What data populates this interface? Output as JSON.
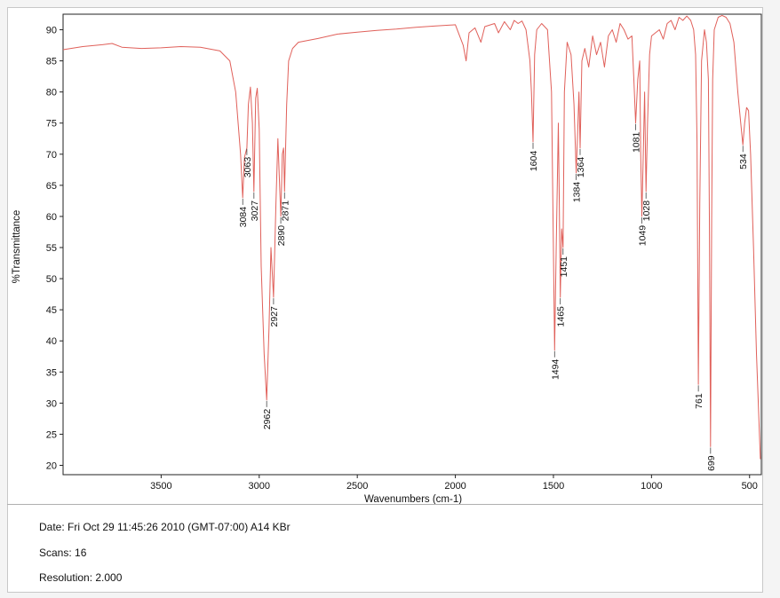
{
  "chart_data": {
    "type": "line",
    "xlabel": "Wavenumbers (cm-1)",
    "ylabel": "%Transmittance",
    "xlim": [
      4000,
      440
    ],
    "ylim": [
      18.5,
      92.5
    ],
    "x_reversed": true,
    "xticks": [
      3500,
      3000,
      2500,
      2000,
      1500,
      1000,
      500
    ],
    "yticks": [
      20,
      25,
      30,
      35,
      40,
      45,
      50,
      55,
      60,
      65,
      70,
      75,
      80,
      85,
      90
    ],
    "grid": false,
    "line_color": "#e0605a",
    "series": [
      {
        "x": [
          4000,
          3900,
          3800,
          3750,
          3700,
          3600,
          3500,
          3400,
          3300,
          3200,
          3150,
          3120,
          3105,
          3095,
          3084,
          3075,
          3063,
          3055,
          3045,
          3035,
          3027,
          3018,
          3010,
          3000,
          2990,
          2975,
          2962,
          2950,
          2940,
          2927,
          2915,
          2905,
          2895,
          2890,
          2882,
          2876,
          2871,
          2860,
          2850,
          2830,
          2800,
          2700,
          2600,
          2500,
          2400,
          2300,
          2200,
          2100,
          2000,
          1960,
          1945,
          1930,
          1900,
          1870,
          1850,
          1800,
          1780,
          1750,
          1720,
          1700,
          1680,
          1660,
          1640,
          1620,
          1612,
          1604,
          1596,
          1585,
          1560,
          1530,
          1510,
          1502,
          1494,
          1486,
          1475,
          1470,
          1465,
          1458,
          1451,
          1444,
          1430,
          1410,
          1395,
          1384,
          1375,
          1370,
          1364,
          1355,
          1340,
          1320,
          1300,
          1280,
          1260,
          1240,
          1220,
          1200,
          1180,
          1160,
          1140,
          1120,
          1100,
          1090,
          1081,
          1070,
          1060,
          1055,
          1049,
          1042,
          1035,
          1028,
          1020,
          1010,
          1000,
          980,
          960,
          940,
          920,
          900,
          880,
          860,
          840,
          820,
          800,
          785,
          775,
          768,
          761,
          754,
          745,
          730,
          720,
          710,
          705,
          699,
          693,
          688,
          680,
          660,
          640,
          620,
          600,
          580,
          560,
          545,
          534,
          525,
          515,
          505,
          495,
          480,
          465,
          445
        ],
        "y": [
          86.8,
          87.3,
          87.6,
          87.8,
          87.2,
          87.0,
          87.1,
          87.3,
          87.2,
          86.6,
          85.0,
          80.0,
          74.0,
          70.0,
          63.0,
          69.5,
          71.0,
          78.0,
          80.8,
          75.0,
          64.0,
          79.0,
          80.6,
          74.0,
          52.0,
          38.0,
          30.5,
          42.0,
          55.0,
          47.0,
          62.0,
          72.5,
          64.0,
          60.0,
          70.0,
          71.0,
          64.0,
          78.0,
          85.0,
          87.0,
          88.0,
          88.6,
          89.3,
          89.6,
          89.9,
          90.1,
          90.4,
          90.6,
          90.8,
          87.5,
          85.0,
          89.5,
          90.3,
          88.0,
          90.5,
          91.0,
          89.5,
          91.3,
          90.0,
          91.5,
          91.0,
          91.4,
          90.0,
          85.0,
          80.0,
          72.0,
          86.0,
          90.0,
          91.0,
          90.0,
          80.0,
          60.0,
          38.5,
          55.0,
          75.0,
          62.0,
          47.0,
          58.0,
          55.0,
          80.0,
          88.0,
          86.0,
          78.0,
          67.0,
          75.0,
          80.0,
          71.0,
          85.0,
          87.0,
          84.0,
          89.0,
          86.0,
          88.0,
          84.0,
          89.0,
          90.0,
          88.0,
          91.0,
          90.0,
          88.5,
          89.0,
          82.0,
          75.0,
          82.0,
          85.0,
          70.0,
          60.0,
          70.0,
          80.0,
          64.0,
          75.0,
          86.0,
          89.0,
          89.5,
          90.0,
          88.5,
          91.0,
          91.5,
          90.0,
          92.0,
          91.5,
          92.2,
          91.5,
          90.0,
          86.0,
          72.0,
          33.0,
          62.0,
          85.0,
          90.0,
          88.0,
          82.0,
          60.0,
          23.0,
          60.0,
          82.0,
          90.0,
          92.0,
          92.3,
          92.0,
          91.0,
          88.0,
          80.0,
          75.0,
          71.5,
          75.0,
          77.5,
          77.0,
          70.0,
          55.0,
          38.0,
          21.0
        ]
      }
    ],
    "peak_labels": [
      {
        "text": "3084",
        "x": 3084,
        "y": 63.0
      },
      {
        "text": "3063",
        "x": 3063,
        "y": 71.0
      },
      {
        "text": "3027",
        "x": 3027,
        "y": 64.0
      },
      {
        "text": "2962",
        "x": 2962,
        "y": 30.5
      },
      {
        "text": "2927",
        "x": 2927,
        "y": 47.0
      },
      {
        "text": "2890",
        "x": 2890,
        "y": 60.0
      },
      {
        "text": "2871",
        "x": 2871,
        "y": 64.0
      },
      {
        "text": "1604",
        "x": 1604,
        "y": 72.0
      },
      {
        "text": "1494",
        "x": 1494,
        "y": 38.5
      },
      {
        "text": "1465",
        "x": 1465,
        "y": 47.0
      },
      {
        "text": "1451",
        "x": 1451,
        "y": 55.0
      },
      {
        "text": "1384",
        "x": 1384,
        "y": 67.0
      },
      {
        "text": "1364",
        "x": 1364,
        "y": 71.0
      },
      {
        "text": "1081",
        "x": 1081,
        "y": 75.0
      },
      {
        "text": "1049",
        "x": 1049,
        "y": 60.0
      },
      {
        "text": "1028",
        "x": 1028,
        "y": 64.0
      },
      {
        "text": "761",
        "x": 761,
        "y": 33.0
      },
      {
        "text": "699",
        "x": 699,
        "y": 23.0
      },
      {
        "text": "534",
        "x": 534,
        "y": 71.5
      }
    ]
  },
  "info": {
    "date": "Date: Fri Oct 29 11:45:26 2010 (GMT-07:00)   A14 KBr",
    "scans": "Scans: 16",
    "resolution": "Resolution: 2.000"
  }
}
